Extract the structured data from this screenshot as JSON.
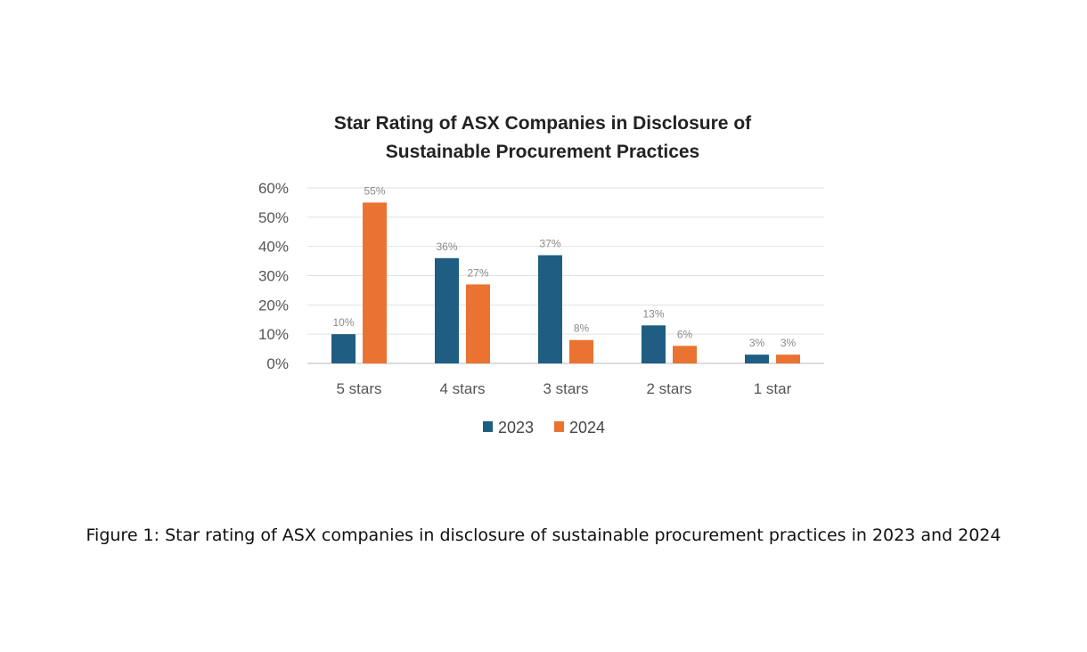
{
  "chart_data": {
    "type": "bar",
    "title": "Star Rating of ASX Companies in Disclosure of Sustainable Procurement Practices",
    "title_lines": [
      "Star Rating of ASX Companies in Disclosure of",
      "Sustainable Procurement Practices"
    ],
    "categories": [
      "5 stars",
      "4 stars",
      "3 stars",
      "2 stars",
      "1 star"
    ],
    "series": [
      {
        "name": "2023",
        "color": "#1f5e82",
        "values": [
          10,
          36,
          37,
          13,
          3
        ],
        "labels": [
          "10%",
          "36%",
          "37%",
          "13%",
          "3%"
        ]
      },
      {
        "name": "2024",
        "color": "#ea7331",
        "values": [
          55,
          27,
          8,
          6,
          3
        ],
        "labels": [
          "55%",
          "27%",
          "8%",
          "6%",
          "3%"
        ]
      }
    ],
    "ylim": [
      0,
      60
    ],
    "yticks": [
      "0%",
      "10%",
      "20%",
      "30%",
      "40%",
      "50%",
      "60%"
    ],
    "grid": true,
    "legend": "bottom",
    "xlabel": "",
    "ylabel": ""
  },
  "caption": "Figure 1: Star rating of ASX companies in disclosure of sustainable procurement practices in 2023 and 2024"
}
